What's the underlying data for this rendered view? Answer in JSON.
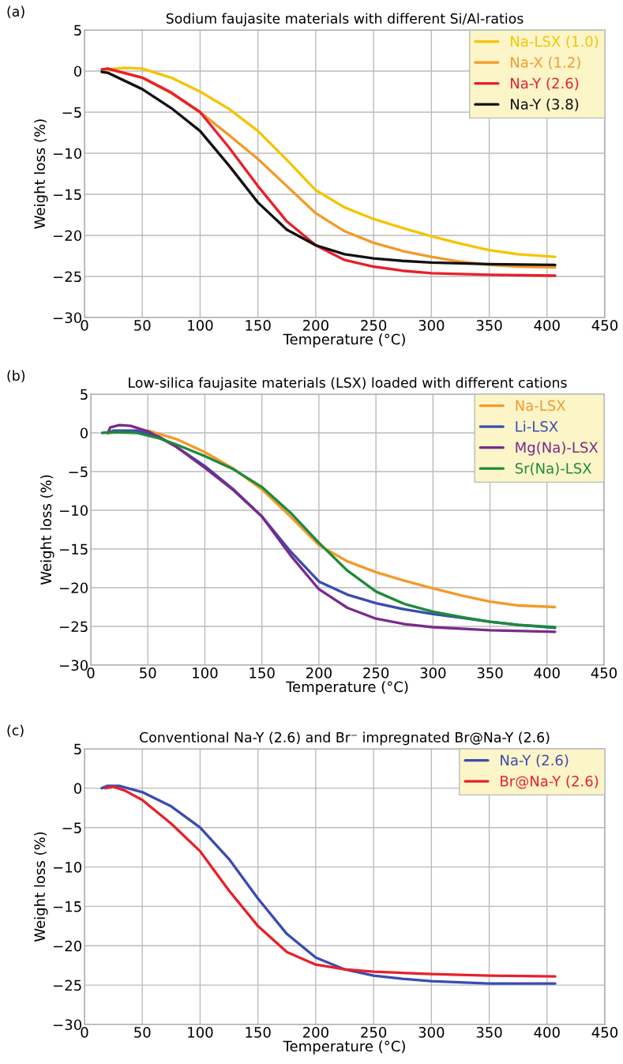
{
  "chart_data": [
    {
      "type": "line",
      "title": "Sodium faujasite materials with different Si/Al-ratios",
      "annotations": [
        "(a)"
      ],
      "xlabel": "Temperature (°C)",
      "ylabel": "Weight loss (%)",
      "xlim": [
        0,
        450
      ],
      "xticks": [
        0,
        50,
        100,
        150,
        200,
        250,
        300,
        350,
        400,
        450
      ],
      "ylim": [
        -30,
        5
      ],
      "yticks": [
        {
          "value": -30,
          "label": "−30"
        },
        {
          "value": -25,
          "label": "−25"
        },
        {
          "value": -20,
          "label": "−20"
        },
        {
          "value": -15,
          "label": "−15"
        },
        {
          "value": -10,
          "label": "−10"
        },
        {
          "value": -5,
          "label": "−5"
        },
        0,
        5
      ],
      "grid": true,
      "legend": "top right",
      "series": [
        {
          "name": "Na-LSX (1.0)",
          "color": "#f5c400",
          "x": [
            15,
            20,
            35,
            50,
            75,
            100,
            125,
            150,
            175,
            200,
            225,
            250,
            275,
            300,
            325,
            350,
            375,
            407
          ],
          "values": [
            0,
            0.2,
            0.4,
            0.3,
            -0.8,
            -2.5,
            -4.6,
            -7.3,
            -10.8,
            -14.5,
            -16.6,
            -18,
            -19.1,
            -20.1,
            -21,
            -21.8,
            -22.3,
            -22.6
          ]
        },
        {
          "name": "Na-X (1.2)",
          "color": "#f39a2b",
          "x": [
            15,
            20,
            50,
            75,
            100,
            125,
            150,
            175,
            200,
            225,
            250,
            275,
            300,
            325,
            350,
            375,
            407
          ],
          "values": [
            0,
            0.3,
            -0.8,
            -2.7,
            -5,
            -7.8,
            -10.7,
            -14,
            -17.3,
            -19.5,
            -20.9,
            -21.9,
            -22.6,
            -23.2,
            -23.6,
            -23.8,
            -23.9
          ]
        },
        {
          "name": "Na-Y (2.6)",
          "color": "#e8202a",
          "x": [
            15,
            20,
            50,
            75,
            100,
            125,
            150,
            175,
            200,
            225,
            250,
            275,
            300,
            350,
            407
          ],
          "values": [
            0.2,
            0.3,
            -0.8,
            -2.6,
            -5,
            -9.3,
            -14,
            -18.3,
            -21.2,
            -23,
            -23.8,
            -24.3,
            -24.6,
            -24.8,
            -24.9
          ]
        },
        {
          "name": "Na-Y (3.8)",
          "color": "#111111",
          "x": [
            15,
            20,
            50,
            75,
            100,
            125,
            150,
            175,
            200,
            225,
            250,
            275,
            300,
            350,
            407
          ],
          "values": [
            -0.1,
            -0.2,
            -2.2,
            -4.5,
            -7.3,
            -11.5,
            -16,
            -19.3,
            -21.2,
            -22.3,
            -22.8,
            -23.1,
            -23.3,
            -23.5,
            -23.6
          ]
        }
      ]
    },
    {
      "type": "line",
      "title": "Low-silica faujasite materials (LSX) loaded with different cations",
      "annotations": [
        "(b)"
      ],
      "xlabel": "Temperature (°C)",
      "ylabel": "Weight loss (%)",
      "xlim": [
        0,
        450
      ],
      "xticks": [
        0,
        50,
        100,
        150,
        200,
        250,
        300,
        350,
        400,
        450
      ],
      "ylim": [
        -30,
        5
      ],
      "yticks": [
        {
          "value": -30,
          "label": "−30"
        },
        {
          "value": -25,
          "label": "−25"
        },
        {
          "value": -20,
          "label": "−20"
        },
        {
          "value": -15,
          "label": "−15"
        },
        {
          "value": -10,
          "label": "−10"
        },
        {
          "value": -5,
          "label": "−5"
        },
        0,
        5
      ],
      "grid": true,
      "legend": "top right",
      "series": [
        {
          "name": "Na-LSX",
          "color": "#f39a2b",
          "x": [
            15,
            50,
            75,
            100,
            125,
            150,
            175,
            200,
            225,
            250,
            275,
            300,
            325,
            350,
            375,
            407
          ],
          "values": [
            0,
            0.3,
            -0.8,
            -2.5,
            -4.6,
            -7.3,
            -10.8,
            -14.5,
            -16.6,
            -18,
            -19.1,
            -20.1,
            -21,
            -21.8,
            -22.3,
            -22.5
          ]
        },
        {
          "name": "Li-LSX",
          "color": "#3a4cb0",
          "x": [
            15,
            20,
            40,
            60,
            75,
            100,
            125,
            150,
            175,
            200,
            225,
            250,
            275,
            300,
            325,
            350,
            375,
            407
          ],
          "values": [
            0,
            0.3,
            0.3,
            -0.5,
            -1.8,
            -4.3,
            -7.3,
            -10.8,
            -15.3,
            -19.2,
            -20.9,
            -22,
            -22.8,
            -23.4,
            -23.9,
            -24.4,
            -24.8,
            -25.2
          ]
        },
        {
          "name": "Mg(Na)-LSX",
          "color": "#7b2a8a",
          "x": [
            15,
            17,
            25,
            35,
            50,
            75,
            100,
            125,
            150,
            175,
            200,
            225,
            250,
            275,
            300,
            350,
            407
          ],
          "values": [
            0,
            0.7,
            1.0,
            0.9,
            0.2,
            -1.8,
            -4.5,
            -7.4,
            -10.8,
            -15.8,
            -20.2,
            -22.6,
            -24,
            -24.7,
            -25.1,
            -25.5,
            -25.7
          ]
        },
        {
          "name": "Sr(Na)-LSX",
          "color": "#1e8a3c",
          "x": [
            10,
            20,
            40,
            60,
            75,
            100,
            125,
            150,
            175,
            200,
            225,
            250,
            275,
            300,
            325,
            350,
            375,
            407
          ],
          "values": [
            0,
            0.1,
            0,
            -0.7,
            -1.5,
            -3,
            -4.7,
            -7,
            -10.3,
            -14.2,
            -17.8,
            -20.5,
            -22.1,
            -23.1,
            -23.8,
            -24.4,
            -24.8,
            -25.1
          ]
        }
      ]
    },
    {
      "type": "line",
      "title": "Conventional Na-Y (2.6) and Br⁻ impregnated Br@Na-Y (2.6)",
      "annotations": [
        "(c)"
      ],
      "xlabel": "Temperature (°C)",
      "ylabel": "Weight loss (%)",
      "xlim": [
        0,
        450
      ],
      "xticks": [
        0,
        50,
        100,
        150,
        200,
        250,
        300,
        350,
        400,
        450
      ],
      "ylim": [
        -30,
        5
      ],
      "yticks": [
        {
          "value": -30,
          "label": "−30"
        },
        {
          "value": -25,
          "label": "−25"
        },
        {
          "value": -20,
          "label": "−20"
        },
        {
          "value": -15,
          "label": "−15"
        },
        {
          "value": -10,
          "label": "−10"
        },
        {
          "value": -5,
          "label": "−5"
        },
        0,
        5
      ],
      "grid": true,
      "legend": "top right",
      "series": [
        {
          "name": "Na-Y (2.6)",
          "color": "#3a4cb0",
          "x": [
            15,
            20,
            30,
            50,
            75,
            100,
            125,
            150,
            175,
            200,
            225,
            250,
            275,
            300,
            350,
            407
          ],
          "values": [
            0,
            0.3,
            0.3,
            -0.5,
            -2.3,
            -5,
            -9,
            -14,
            -18.5,
            -21.5,
            -23,
            -23.8,
            -24.2,
            -24.5,
            -24.8,
            -24.8
          ]
        },
        {
          "name": "Br@Na-Y (2.6)",
          "color": "#e8202a",
          "x": [
            18,
            25,
            35,
            50,
            75,
            100,
            125,
            150,
            175,
            200,
            225,
            250,
            300,
            350,
            407
          ],
          "values": [
            0,
            0.2,
            -0.3,
            -1.5,
            -4.5,
            -8,
            -13,
            -17.5,
            -20.8,
            -22.4,
            -23,
            -23.3,
            -23.6,
            -23.8,
            -23.9
          ]
        }
      ]
    }
  ]
}
